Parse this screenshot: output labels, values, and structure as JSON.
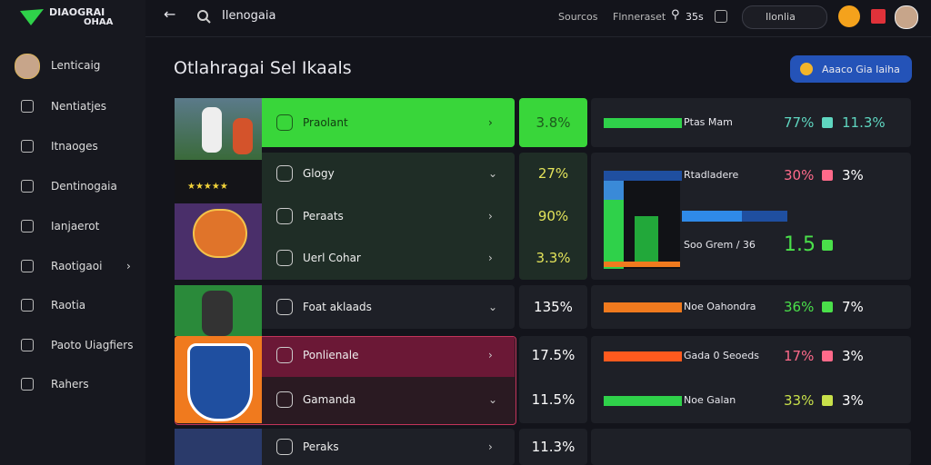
{
  "logo": {
    "line1": "DIAOGRAI",
    "line2": "OHAA"
  },
  "topbar": {
    "title": "Ilenogaia",
    "links": [
      "Sourcos",
      "Flnneraset"
    ],
    "counter": "35s",
    "search": "Ilonlia"
  },
  "sidebar": {
    "items": [
      "Lenticaig",
      "Nentiatjes",
      "Itnaoges",
      "Dentinogaia",
      "Ianjaerot",
      "Raotigaoi",
      "Raotia",
      "Paoto Uiagfiers",
      "Rahers"
    ]
  },
  "page": {
    "title": "Otlahragai Sel Ikaals",
    "button": "Aaaco Gia Iaiha"
  },
  "list": {
    "rows": [
      {
        "label": "Praolant",
        "value": "3.8%"
      },
      {
        "label": "Glogy",
        "value": "27%"
      },
      {
        "label": "Peraats",
        "value": "90%"
      },
      {
        "label": "Uerl Cohar",
        "value": "3.3%"
      },
      {
        "label": "Foat aklaads",
        "value": "135%"
      },
      {
        "label": "Ponlienale",
        "value": "17.5%"
      },
      {
        "label": "Gamanda",
        "value": "11.5%"
      },
      {
        "label": "Peraks",
        "value": "11.3%"
      }
    ]
  },
  "stats": {
    "rows": [
      {
        "label": "Ptas Mam",
        "primary": "77%",
        "secondary": "11.3%"
      },
      {
        "label": "Rtadladere",
        "primary": "30%",
        "secondary": "3%"
      },
      {
        "label": "Soo Grem / 36",
        "primary": "1.5"
      },
      {
        "label": "Noe Oahondra",
        "primary": "36%",
        "secondary": "7%"
      },
      {
        "label": "Gada 0 Seoeds",
        "primary": "17%",
        "secondary": "3%"
      },
      {
        "label": "Noe Galan",
        "primary": "33%",
        "secondary": "3%"
      }
    ]
  }
}
